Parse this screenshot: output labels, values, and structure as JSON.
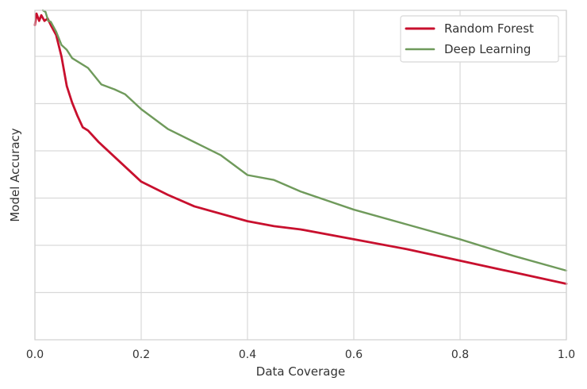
{
  "chart_data": {
    "type": "line",
    "title": "",
    "xlabel": "Data Coverage",
    "ylabel": "Model Accuracy",
    "xlim": [
      0.0,
      1.0
    ],
    "ylim": [
      0,
      1
    ],
    "x_ticks": [
      "0.0",
      "0.2",
      "0.4",
      "0.6",
      "0.8",
      "1.0"
    ],
    "x_tick_values": [
      0.0,
      0.2,
      0.4,
      0.6,
      0.8,
      1.0
    ],
    "y_gridlines": [
      0.1434,
      0.2868,
      0.4301,
      0.5735,
      0.7169,
      0.8602
    ],
    "grid": true,
    "legend_position": "top-right",
    "series": [
      {
        "name": "Random Forest",
        "color": "#c8102e",
        "points": [
          [
            0.0,
            0.955
          ],
          [
            0.003,
            0.99
          ],
          [
            0.008,
            0.968
          ],
          [
            0.012,
            0.985
          ],
          [
            0.018,
            0.968
          ],
          [
            0.024,
            0.975
          ],
          [
            0.03,
            0.955
          ],
          [
            0.04,
            0.925
          ],
          [
            0.05,
            0.86
          ],
          [
            0.06,
            0.77
          ],
          [
            0.07,
            0.72
          ],
          [
            0.08,
            0.68
          ],
          [
            0.09,
            0.645
          ],
          [
            0.1,
            0.635
          ],
          [
            0.12,
            0.6
          ],
          [
            0.15,
            0.555
          ],
          [
            0.2,
            0.48
          ],
          [
            0.25,
            0.44
          ],
          [
            0.3,
            0.405
          ],
          [
            0.4,
            0.36
          ],
          [
            0.45,
            0.345
          ],
          [
            0.5,
            0.335
          ],
          [
            0.6,
            0.305
          ],
          [
            0.7,
            0.275
          ],
          [
            0.8,
            0.24
          ],
          [
            0.9,
            0.205
          ],
          [
            1.0,
            0.17
          ]
        ]
      },
      {
        "name": "Deep Learning",
        "color": "#6f9a5b",
        "points": [
          [
            0.015,
            1.0
          ],
          [
            0.02,
            0.995
          ],
          [
            0.025,
            0.968
          ],
          [
            0.03,
            0.965
          ],
          [
            0.04,
            0.935
          ],
          [
            0.05,
            0.895
          ],
          [
            0.06,
            0.88
          ],
          [
            0.07,
            0.855
          ],
          [
            0.1,
            0.825
          ],
          [
            0.125,
            0.775
          ],
          [
            0.15,
            0.76
          ],
          [
            0.17,
            0.745
          ],
          [
            0.2,
            0.7
          ],
          [
            0.25,
            0.64
          ],
          [
            0.3,
            0.6
          ],
          [
            0.35,
            0.56
          ],
          [
            0.4,
            0.5
          ],
          [
            0.45,
            0.485
          ],
          [
            0.5,
            0.45
          ],
          [
            0.6,
            0.395
          ],
          [
            0.7,
            0.35
          ],
          [
            0.8,
            0.305
          ],
          [
            0.9,
            0.255
          ],
          [
            1.0,
            0.21
          ]
        ]
      }
    ]
  }
}
